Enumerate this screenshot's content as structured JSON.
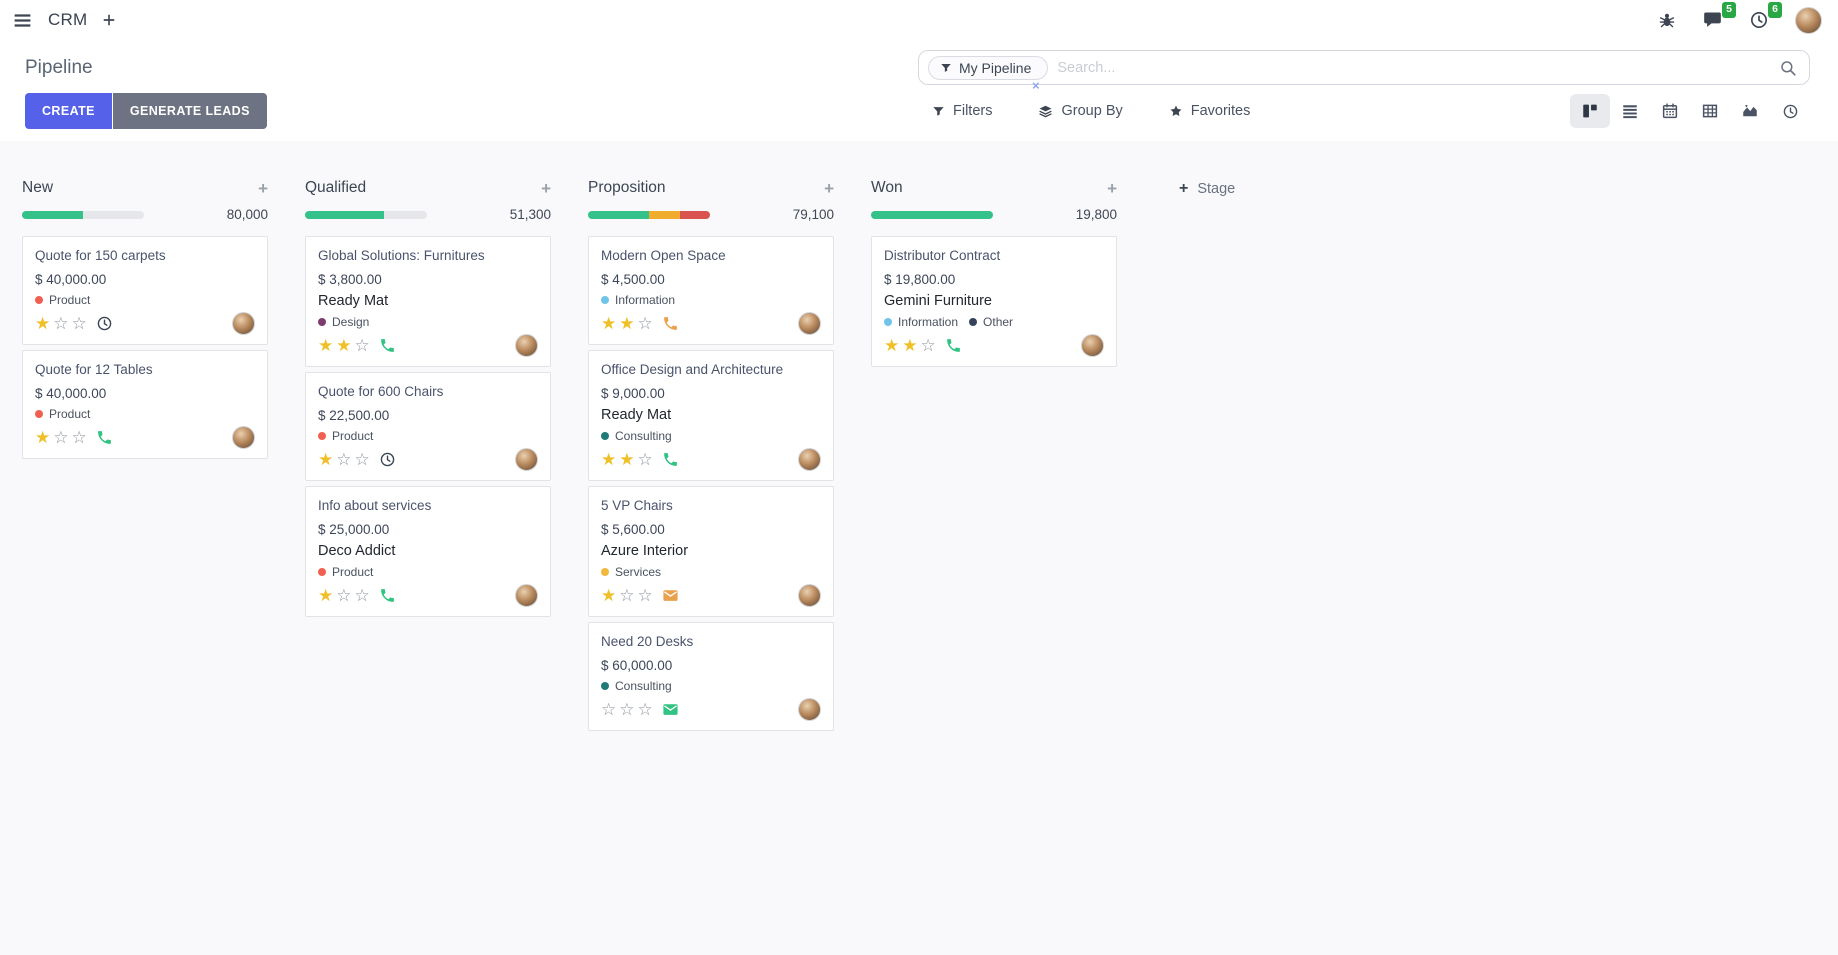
{
  "navbar": {
    "app_name": "CRM",
    "message_badge": "5",
    "activity_badge": "6",
    "icons": [
      "apps-menu-icon",
      "plus-icon",
      "bug-icon",
      "messages-icon",
      "activity-clock-icon",
      "user-avatar"
    ]
  },
  "control_panel": {
    "title": "Pipeline",
    "search": {
      "facet_label": "My Pipeline",
      "placeholder": "Search...",
      "remove_symbol": "×"
    },
    "buttons": {
      "create": "CREATE",
      "generate_leads": "GENERATE LEADS"
    },
    "filter_labels": {
      "filters": "Filters",
      "group_by": "Group By",
      "favorites": "Favorites"
    },
    "view_switcher": {
      "icons": [
        "kanban",
        "list",
        "calendar",
        "pivot",
        "graph",
        "activity"
      ],
      "active": "kanban"
    }
  },
  "colors": {
    "green": "#34c28a",
    "yellow": "#f0ad2d",
    "red": "#d9534f",
    "tag_red": "#f06050",
    "tag_purple": "#7d3c6d",
    "tag_lightblue": "#6fc4e8",
    "tag_teal": "#1f7a78",
    "tag_yellow": "#f0b93c",
    "tag_navy": "#36425c",
    "icon_green": "#30c381",
    "icon_orange": "#eaa14e",
    "icon_dark": "#3b4453",
    "accent": "#5461e8",
    "badge_green": "#28a745"
  },
  "board": {
    "add_stage_label": "Stage",
    "columns": [
      {
        "name": "New",
        "amount": "80,000",
        "progress": [
          {
            "color": "green",
            "pct": 50
          }
        ],
        "cards": [
          {
            "title": "Quote for 150 carpets",
            "amount": "$ 40,000.00",
            "tags": [
              {
                "label": "Product",
                "color": "tag_red"
              }
            ],
            "stars": 1,
            "activity": {
              "icon": "clock",
              "color": "icon_dark"
            }
          },
          {
            "title": "Quote for 12 Tables",
            "amount": "$ 40,000.00",
            "tags": [
              {
                "label": "Product",
                "color": "tag_red"
              }
            ],
            "stars": 1,
            "activity": {
              "icon": "phone",
              "color": "icon_green"
            }
          }
        ]
      },
      {
        "name": "Qualified",
        "amount": "51,300",
        "progress": [
          {
            "color": "green",
            "pct": 65
          }
        ],
        "cards": [
          {
            "title": "Global Solutions: Furnitures",
            "amount": "$ 3,800.00",
            "partner": "Ready Mat",
            "tags": [
              {
                "label": "Design",
                "color": "tag_purple"
              }
            ],
            "stars": 2,
            "activity": {
              "icon": "phone",
              "color": "icon_green"
            }
          },
          {
            "title": "Quote for 600 Chairs",
            "amount": "$ 22,500.00",
            "tags": [
              {
                "label": "Product",
                "color": "tag_red"
              }
            ],
            "stars": 1,
            "activity": {
              "icon": "clock",
              "color": "icon_dark"
            }
          },
          {
            "title": "Info about services",
            "amount": "$ 25,000.00",
            "partner": "Deco Addict",
            "tags": [
              {
                "label": "Product",
                "color": "tag_red"
              }
            ],
            "stars": 1,
            "activity": {
              "icon": "phone",
              "color": "icon_green"
            }
          }
        ]
      },
      {
        "name": "Proposition",
        "amount": "79,100",
        "progress": [
          {
            "color": "green",
            "pct": 50
          },
          {
            "color": "yellow",
            "pct": 25
          },
          {
            "color": "red",
            "pct": 25
          }
        ],
        "cards": [
          {
            "title": "Modern Open Space",
            "amount": "$ 4,500.00",
            "tags": [
              {
                "label": "Information",
                "color": "tag_lightblue"
              }
            ],
            "stars": 2,
            "activity": {
              "icon": "phone",
              "color": "icon_orange"
            }
          },
          {
            "title": "Office Design and Architecture",
            "amount": "$ 9,000.00",
            "partner": "Ready Mat",
            "tags": [
              {
                "label": "Consulting",
                "color": "tag_teal"
              }
            ],
            "stars": 2,
            "activity": {
              "icon": "phone",
              "color": "icon_green"
            }
          },
          {
            "title": "5 VP Chairs",
            "amount": "$ 5,600.00",
            "partner": "Azure Interior",
            "tags": [
              {
                "label": "Services",
                "color": "tag_yellow"
              }
            ],
            "stars": 1,
            "activity": {
              "icon": "mail",
              "color": "icon_orange"
            }
          },
          {
            "title": "Need 20 Desks",
            "amount": "$ 60,000.00",
            "tags": [
              {
                "label": "Consulting",
                "color": "tag_teal"
              }
            ],
            "stars": 0,
            "activity": {
              "icon": "mail",
              "color": "icon_green"
            }
          }
        ]
      },
      {
        "name": "Won",
        "amount": "19,800",
        "progress": [
          {
            "color": "green",
            "pct": 100
          }
        ],
        "cards": [
          {
            "title": "Distributor Contract",
            "amount": "$ 19,800.00",
            "partner": "Gemini Furniture",
            "tags": [
              {
                "label": "Information",
                "color": "tag_lightblue"
              },
              {
                "label": "Other",
                "color": "tag_navy"
              }
            ],
            "stars": 2,
            "activity": {
              "icon": "phone",
              "color": "icon_green"
            }
          }
        ]
      }
    ]
  }
}
